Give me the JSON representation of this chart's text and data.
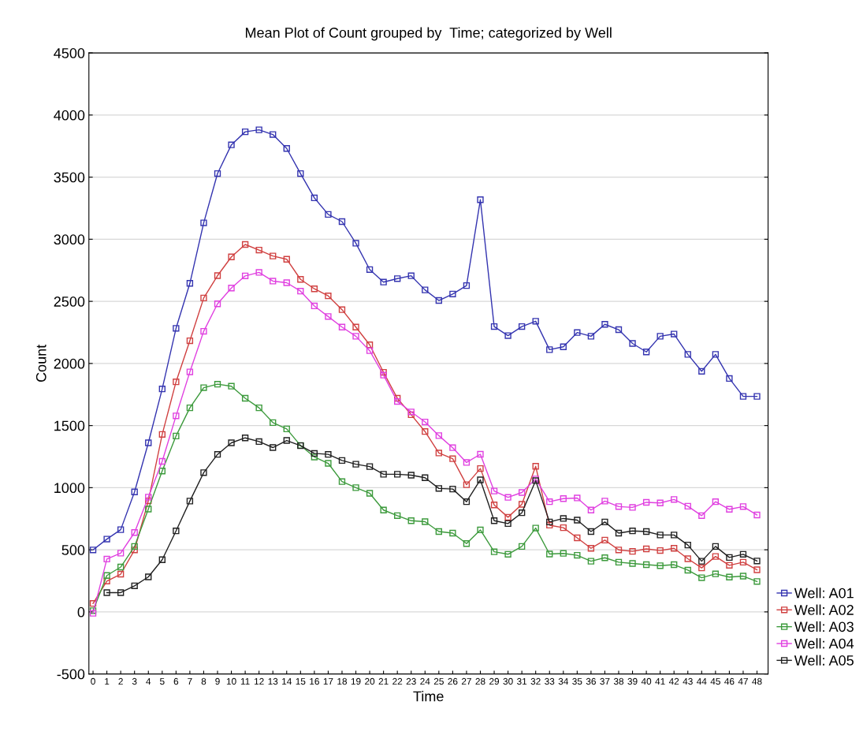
{
  "chart_data": {
    "type": "line",
    "title": "Mean Plot of Count grouped by  Time; categorized by Well",
    "xlabel": "Time",
    "ylabel": "Count",
    "x": [
      0,
      1,
      2,
      3,
      4,
      5,
      6,
      7,
      8,
      9,
      10,
      11,
      12,
      13,
      14,
      15,
      16,
      17,
      18,
      19,
      20,
      21,
      22,
      23,
      24,
      25,
      26,
      27,
      28,
      29,
      30,
      31,
      32,
      33,
      34,
      35,
      36,
      37,
      38,
      39,
      40,
      41,
      42,
      43,
      44,
      45,
      46,
      47,
      48
    ],
    "xlim": [
      -0.3,
      48.8
    ],
    "xticks": [
      0,
      1,
      2,
      3,
      4,
      5,
      6,
      7,
      8,
      9,
      10,
      11,
      12,
      13,
      14,
      15,
      16,
      17,
      18,
      19,
      20,
      21,
      22,
      23,
      24,
      25,
      26,
      27,
      28,
      29,
      30,
      31,
      32,
      33,
      34,
      35,
      36,
      37,
      38,
      39,
      40,
      41,
      42,
      43,
      44,
      45,
      46,
      47,
      48
    ],
    "ylim": [
      -500,
      4500
    ],
    "yticks": [
      -500,
      0,
      500,
      1000,
      1500,
      2000,
      2500,
      3000,
      3500,
      4000,
      4500
    ],
    "grid": "y",
    "legend": "bottom right",
    "marker": "square",
    "line_style": "solid",
    "series": [
      {
        "name": "Well: A01",
        "color": "#3434b0",
        "values": [
          499,
          586,
          662,
          966,
          1361,
          1795,
          2283,
          2645,
          3132,
          3529,
          3760,
          3865,
          3881,
          3843,
          3731,
          3529,
          3333,
          3200,
          3142,
          2968,
          2756,
          2655,
          2683,
          2706,
          2592,
          2507,
          2559,
          2627,
          3318,
          2297,
          2224,
          2297,
          2340,
          2111,
          2134,
          2249,
          2219,
          2315,
          2272,
          2161,
          2093,
          2219,
          2237,
          2073,
          1937,
          2073,
          1879,
          1735,
          1735
        ]
      },
      {
        "name": "Well: A02",
        "color": "#d04040",
        "values": [
          68,
          248,
          304,
          499,
          894,
          1429,
          1852,
          2183,
          2527,
          2707,
          2858,
          2958,
          2913,
          2865,
          2839,
          2677,
          2601,
          2544,
          2433,
          2293,
          2150,
          1929,
          1720,
          1587,
          1452,
          1279,
          1233,
          1024,
          1154,
          861,
          762,
          866,
          1172,
          698,
          678,
          596,
          512,
          578,
          499,
          487,
          507,
          494,
          512,
          428,
          354,
          446,
          375,
          400,
          339
        ]
      },
      {
        "name": "Well: A03",
        "color": "#3c9a3c",
        "values": [
          10,
          293,
          361,
          527,
          828,
          1134,
          1416,
          1643,
          1805,
          1833,
          1817,
          1720,
          1643,
          1524,
          1473,
          1340,
          1247,
          1196,
          1049,
          1000,
          955,
          820,
          775,
          734,
          726,
          647,
          634,
          550,
          660,
          484,
          464,
          527,
          675,
          466,
          471,
          456,
          408,
          436,
          400,
          390,
          380,
          372,
          380,
          336,
          275,
          306,
          280,
          288,
          245
        ]
      },
      {
        "name": "Well: A04",
        "color": "#e040e0",
        "values": [
          -11,
          425,
          473,
          639,
          924,
          1212,
          1578,
          1932,
          2259,
          2480,
          2607,
          2705,
          2733,
          2663,
          2650,
          2582,
          2463,
          2378,
          2293,
          2219,
          2103,
          1906,
          1694,
          1610,
          1529,
          1419,
          1322,
          1203,
          1269,
          973,
          922,
          961,
          1070,
          887,
          912,
          917,
          820,
          892,
          848,
          841,
          882,
          877,
          905,
          851,
          775,
          887,
          826,
          848,
          780
        ]
      },
      {
        "name": "Well: A05",
        "color": "#202020",
        "values": [
          null,
          155,
          155,
          210,
          282,
          420,
          652,
          892,
          1121,
          1268,
          1361,
          1401,
          1371,
          1323,
          1380,
          1338,
          1276,
          1268,
          1219,
          1189,
          1170,
          1108,
          1108,
          1101,
          1080,
          994,
          989,
          887,
          1063,
          734,
          711,
          798,
          1057,
          724,
          752,
          739,
          647,
          724,
          634,
          652,
          647,
          619,
          619,
          538,
          408,
          527,
          438,
          464,
          410
        ]
      }
    ]
  }
}
